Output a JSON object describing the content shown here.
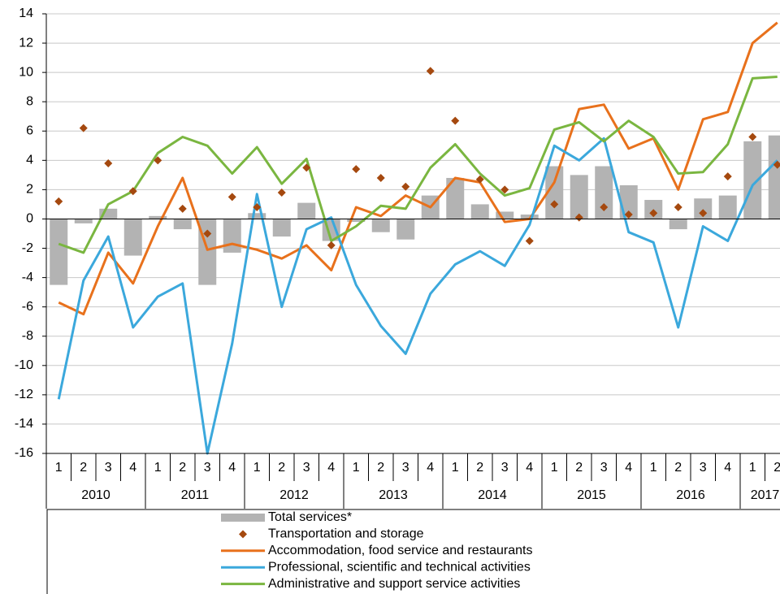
{
  "chart_data": {
    "type": "combo",
    "categories": [
      "1",
      "2",
      "3",
      "4",
      "1",
      "2",
      "3",
      "4",
      "1",
      "2",
      "3",
      "4",
      "1",
      "2",
      "3",
      "4",
      "1",
      "2",
      "3",
      "4",
      "1",
      "2",
      "3",
      "4",
      "1",
      "2",
      "3",
      "4",
      "1",
      "2"
    ],
    "category_groups": [
      "2010",
      "2011",
      "2012",
      "2013",
      "2014",
      "2015",
      "2016",
      "2017"
    ],
    "ylim": [
      -16,
      14
    ],
    "yticks": [
      -16,
      -14,
      -12,
      -10,
      -8,
      -6,
      -4,
      -2,
      0,
      2,
      4,
      6,
      8,
      10,
      12,
      14
    ],
    "grid": true,
    "series": [
      {
        "name": "Total services*",
        "type": "bar",
        "color": "#b3b3b3",
        "values": [
          -4.5,
          -0.3,
          0.7,
          -2.5,
          0.2,
          -0.7,
          -4.5,
          -2.3,
          0.4,
          -1.2,
          1.1,
          -1.5,
          -0.2,
          -0.9,
          -1.4,
          1.6,
          2.8,
          1.0,
          0.5,
          0.3,
          3.6,
          3.0,
          3.6,
          2.3,
          1.3,
          -0.7,
          1.4,
          1.6,
          5.3,
          5.7
        ]
      },
      {
        "name": "Transportation and storage",
        "type": "scatter",
        "color": "#a5490f",
        "values": [
          1.2,
          6.2,
          3.8,
          1.9,
          4.0,
          0.7,
          -1.0,
          1.5,
          0.8,
          1.8,
          3.5,
          -1.8,
          3.4,
          2.8,
          2.2,
          10.1,
          6.7,
          2.7,
          2.0,
          -1.5,
          1.0,
          0.1,
          0.8,
          0.3,
          0.4,
          0.8,
          0.4,
          2.9,
          5.6,
          3.7
        ]
      },
      {
        "name": "Accommodation, food service and restaurants",
        "type": "line",
        "color": "#e8711c",
        "values": [
          -5.7,
          -6.5,
          -2.3,
          -4.4,
          -0.5,
          2.8,
          -2.1,
          -1.7,
          -2.1,
          -2.7,
          -1.8,
          -3.5,
          0.8,
          0.2,
          1.6,
          0.8,
          2.8,
          2.5,
          -0.2,
          0.0,
          2.5,
          7.5,
          7.8,
          4.8,
          5.5,
          2.0,
          6.8,
          7.3,
          12.0,
          13.4
        ]
      },
      {
        "name": "Professional, scientific and technical activities",
        "type": "line",
        "color": "#3ba8dc",
        "values": [
          -12.3,
          -4.2,
          -1.2,
          -7.4,
          -5.3,
          -4.4,
          -16,
          -8.5,
          1.7,
          -6.0,
          -0.7,
          0.1,
          -4.5,
          -7.3,
          -9.2,
          -5.1,
          -3.1,
          -2.2,
          -3.2,
          -0.4,
          5.0,
          4.0,
          5.5,
          -0.9,
          -1.6,
          -7.4,
          -0.5,
          -1.5,
          2.3,
          4.0
        ]
      },
      {
        "name": "Administrative and support service activities",
        "type": "line",
        "color": "#7ab640",
        "values": [
          -1.7,
          -2.3,
          1.0,
          1.9,
          4.5,
          5.6,
          5.0,
          3.1,
          4.9,
          2.4,
          4.1,
          -1.5,
          -0.5,
          0.9,
          0.7,
          3.5,
          5.1,
          3.1,
          1.6,
          2.1,
          6.1,
          6.6,
          5.3,
          6.7,
          5.6,
          3.1,
          3.2,
          5.1,
          9.6,
          9.7
        ]
      }
    ]
  }
}
